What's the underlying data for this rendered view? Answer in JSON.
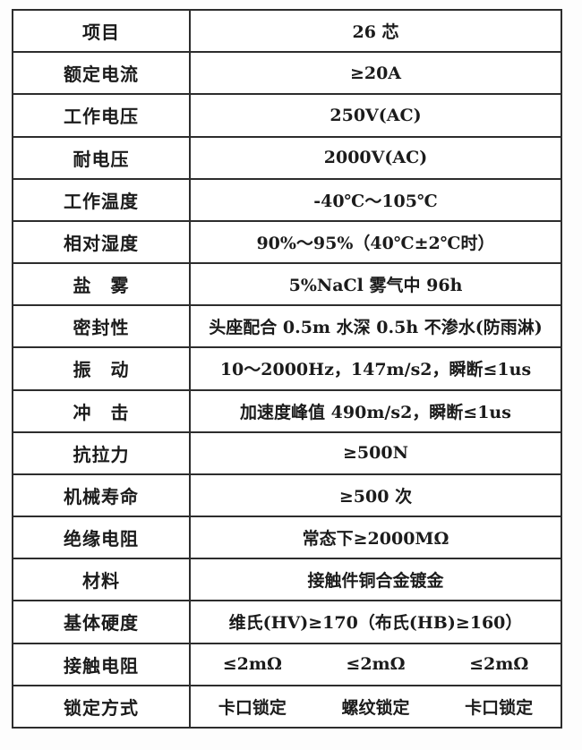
{
  "table": {
    "border_color": "#2d2d2d",
    "background": "#ffffff",
    "text_color": "#1b1b1b",
    "rows": [
      {
        "label": "项目",
        "value": "26 芯"
      },
      {
        "label": "额定电流",
        "value": "≥20A"
      },
      {
        "label": "工作电压",
        "value": "250V(AC)"
      },
      {
        "label": "耐电压",
        "value": "2000V(AC)"
      },
      {
        "label": "工作温度",
        "value": "-40℃～105℃"
      },
      {
        "label": "相对湿度",
        "value": "90%～95%（40℃±2℃时）"
      },
      {
        "label": "盐　雾",
        "value": "5%NaCl 雾气中 96h"
      },
      {
        "label": "密封性",
        "value": "头座配合 0.5m 水深 0.5h 不渗水(防雨淋)"
      },
      {
        "label": "振　动",
        "value": "10～2000Hz，147m/s2，瞬断≤1us"
      },
      {
        "label": "冲　击",
        "value": "加速度峰值 490m/s2，瞬断≤1us"
      },
      {
        "label": "抗拉力",
        "value": "≥500N"
      },
      {
        "label": "机械寿命",
        "value": "≥500 次"
      },
      {
        "label": "绝缘电阻",
        "value": "常态下≥2000MΩ"
      },
      {
        "label": "材料",
        "value": "接触件铜合金镀金"
      },
      {
        "label": "基体硬度",
        "value": "维氏(HV)≥170（布氏(HB)≥160）"
      },
      {
        "label": "接触电阻",
        "values": [
          "≤2mΩ",
          "≤2mΩ",
          "≤2mΩ"
        ]
      },
      {
        "label": "锁定方式",
        "values": [
          "卡口锁定",
          "螺纹锁定",
          "卡口锁定"
        ]
      }
    ]
  }
}
